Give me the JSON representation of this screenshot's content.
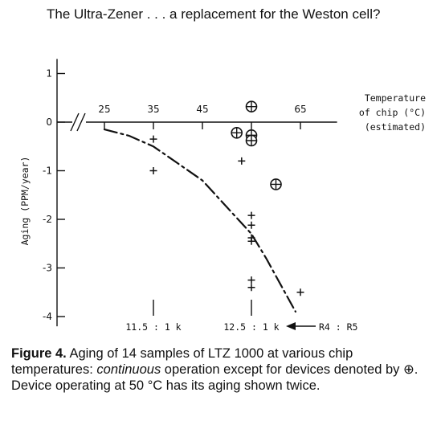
{
  "header": {
    "title": "The Ultra-Zener . . . a replacement for the Weston cell?"
  },
  "caption": {
    "label": "Figure 4.",
    "text_1": "Aging of 14 samples of LTZ 1000 at various chip temperatures: ",
    "italic": "continuous",
    "text_2": " operation except for devices denoted by ⊕. Device operating at 50 °C has its aging shown twice."
  },
  "chart_data": {
    "type": "scatter",
    "ylabel": "Aging (PPM/year)",
    "x_axis_title": [
      "Temperature",
      "of chip (°C)",
      "(estimated)"
    ],
    "x_ticks": [
      25,
      35,
      45,
      55,
      65
    ],
    "x_tick_labels": [
      "25",
      "35",
      "45",
      "",
      "65"
    ],
    "y_ticks": [
      1,
      0,
      -1,
      -2,
      -3,
      -4
    ],
    "y_tick_labels": [
      "1",
      "0",
      "-1",
      "-2",
      "-3",
      "-4"
    ],
    "xlim": [
      19,
      71
    ],
    "ylim": [
      -4.2,
      1.3
    ],
    "series": [
      {
        "marker": "plus",
        "points": [
          [
            35,
            -0.35
          ],
          [
            35,
            -1.0
          ],
          [
            53,
            -0.8
          ],
          [
            55,
            -1.92
          ],
          [
            55,
            -2.12
          ],
          [
            55,
            -2.38
          ],
          [
            55,
            -2.45
          ],
          [
            55,
            -3.25
          ],
          [
            55,
            -3.4
          ],
          [
            65,
            -3.5
          ]
        ]
      },
      {
        "marker": "circled-plus",
        "points": [
          [
            55,
            0.32
          ],
          [
            52,
            -0.22
          ],
          [
            55,
            -0.27
          ],
          [
            55,
            -0.38
          ],
          [
            60,
            -1.28
          ]
        ]
      }
    ],
    "trend_line": {
      "style": "dash-dot",
      "points": [
        [
          25,
          -0.15
        ],
        [
          30,
          -0.28
        ],
        [
          35,
          -0.5
        ],
        [
          40,
          -0.85
        ],
        [
          45,
          -1.2
        ],
        [
          50,
          -1.75
        ],
        [
          55,
          -2.3
        ],
        [
          58,
          -2.8
        ],
        [
          61,
          -3.35
        ],
        [
          64,
          -3.9
        ]
      ]
    },
    "ratio_labels": [
      {
        "x": 35,
        "text": "11.5 : 1 k"
      },
      {
        "x": 55,
        "text": "12.5 : 1 k"
      }
    ],
    "ratio_arrow_label": "R4 : R5"
  }
}
